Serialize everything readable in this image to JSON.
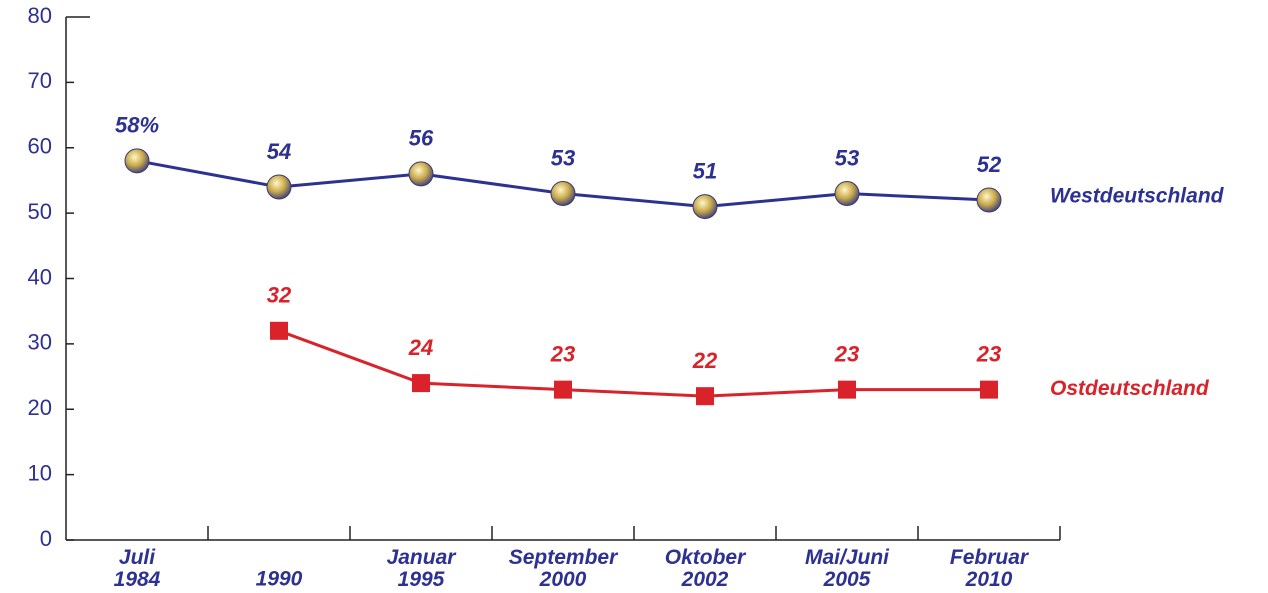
{
  "chart_data": {
    "type": "line",
    "categories": [
      "Juli\n1984",
      "1990",
      "Januar\n1995",
      "September\n2000",
      "Oktober\n2002",
      "Mai/Juni\n2005",
      "Februar\n2010"
    ],
    "series": [
      {
        "name": "Westdeutschland",
        "color": "#2d3192",
        "values": [
          58,
          54,
          56,
          53,
          51,
          53,
          52
        ],
        "value_labels": [
          "58%",
          "54",
          "56",
          "53",
          "51",
          "53",
          "52"
        ]
      },
      {
        "name": "Ostdeutschland",
        "color": "#d9222a",
        "values": [
          null,
          32,
          24,
          23,
          22,
          23,
          23
        ],
        "value_labels": [
          null,
          "32",
          "24",
          "23",
          "22",
          "23",
          "23"
        ]
      }
    ],
    "ylim": [
      0,
      80
    ],
    "yticks": [
      0,
      10,
      20,
      30,
      40,
      50,
      60,
      70,
      80
    ]
  }
}
